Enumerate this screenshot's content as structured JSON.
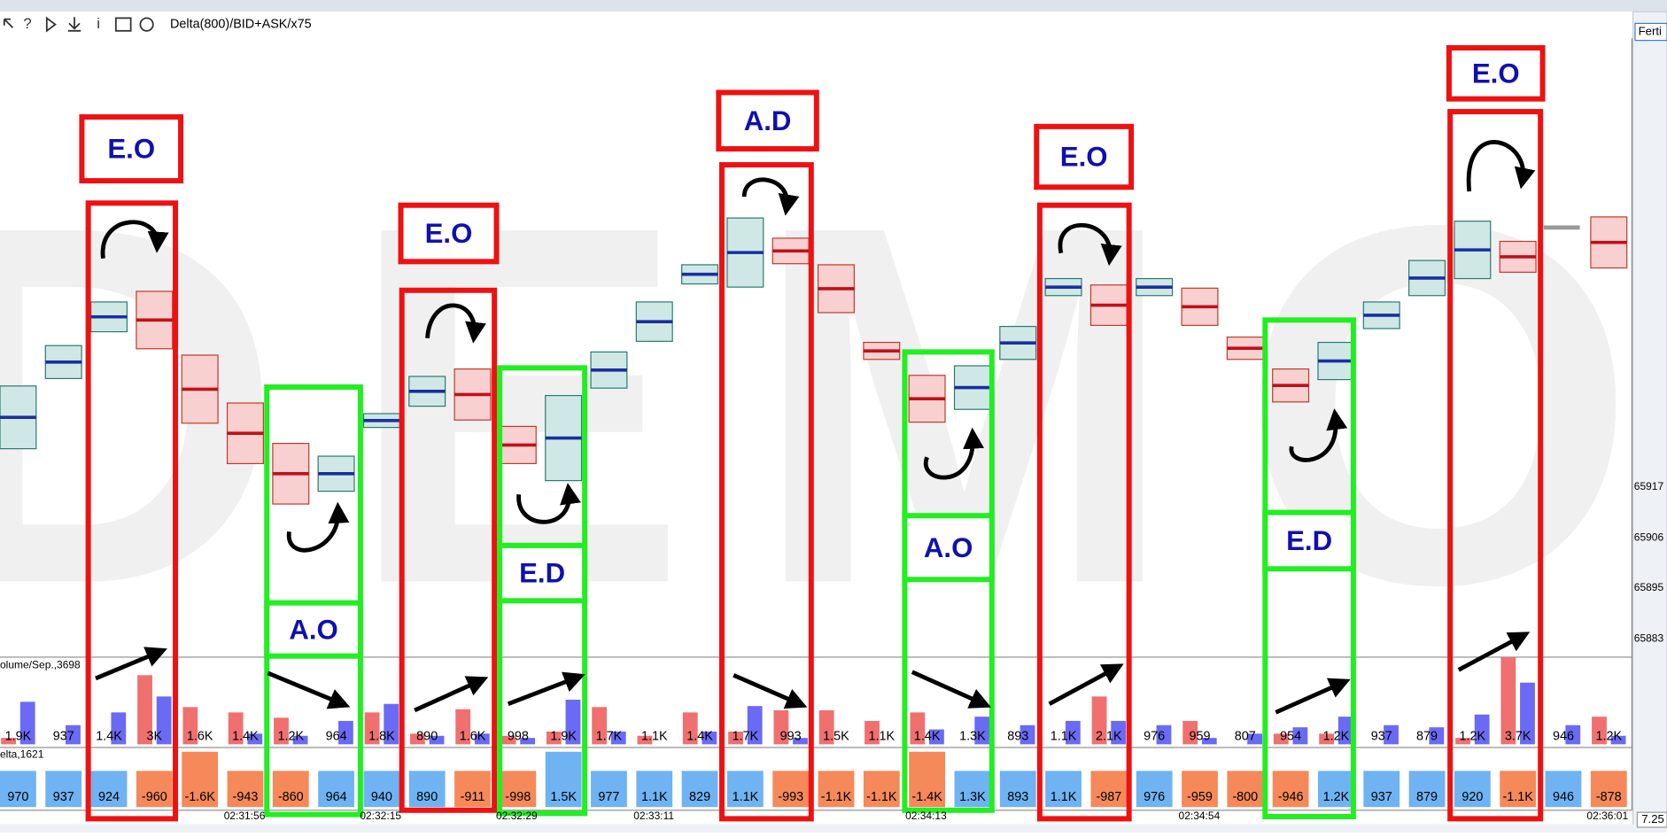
{
  "toolbar": {
    "indicator": "Delta(800)/BID+ASK/x75",
    "button": "Ferti"
  },
  "watermark": "DEMO",
  "price_axis": [
    "65917",
    "65906",
    "65895",
    "65883"
  ],
  "time_axis": [
    "02:31:56",
    "02:32:15",
    "02:32:29",
    "02:33:11",
    "02:34:13",
    "02:34:54",
    "02:36:01"
  ],
  "volume_panel": {
    "label": "olume/Sep.,3698",
    "values": [
      "1.9K",
      "937",
      "1.4K",
      "3K",
      "1.6K",
      "1.4K",
      "1.2K",
      "964",
      "1.8K",
      "890",
      "1.6K",
      "998",
      "1.9K",
      "1.7K",
      "1.1K",
      "1.4K",
      "1.7K",
      "993",
      "1.5K",
      "1.1K",
      "1.4K",
      "1.3K",
      "893",
      "1.1K",
      "2.1K",
      "976",
      "959",
      "807",
      "954",
      "1.2K",
      "937",
      "879",
      "1.2K",
      "3.7K",
      "946",
      "1.2K"
    ]
  },
  "delta_panel": {
    "label": "elta,1621",
    "values": [
      "970",
      "937",
      "924",
      "-960",
      "-1.6K",
      "-943",
      "-860",
      "964",
      "940",
      "890",
      "-911",
      "-998",
      "1.5K",
      "977",
      "1.1K",
      "829",
      "1.1K",
      "-993",
      "-1.1K",
      "-1.1K",
      "-1.4K",
      "1.3K",
      "893",
      "1.1K",
      "-987",
      "976",
      "-959",
      "-800",
      "-946",
      "1.2K",
      "937",
      "879",
      "920",
      "-1.1K",
      "946",
      "-878"
    ]
  },
  "annotations": [
    "E.O",
    "E.O",
    "A.D",
    "E.O",
    "E.O",
    "A.O",
    "E.D",
    "A.O",
    "E.D"
  ],
  "status": "7.25"
}
